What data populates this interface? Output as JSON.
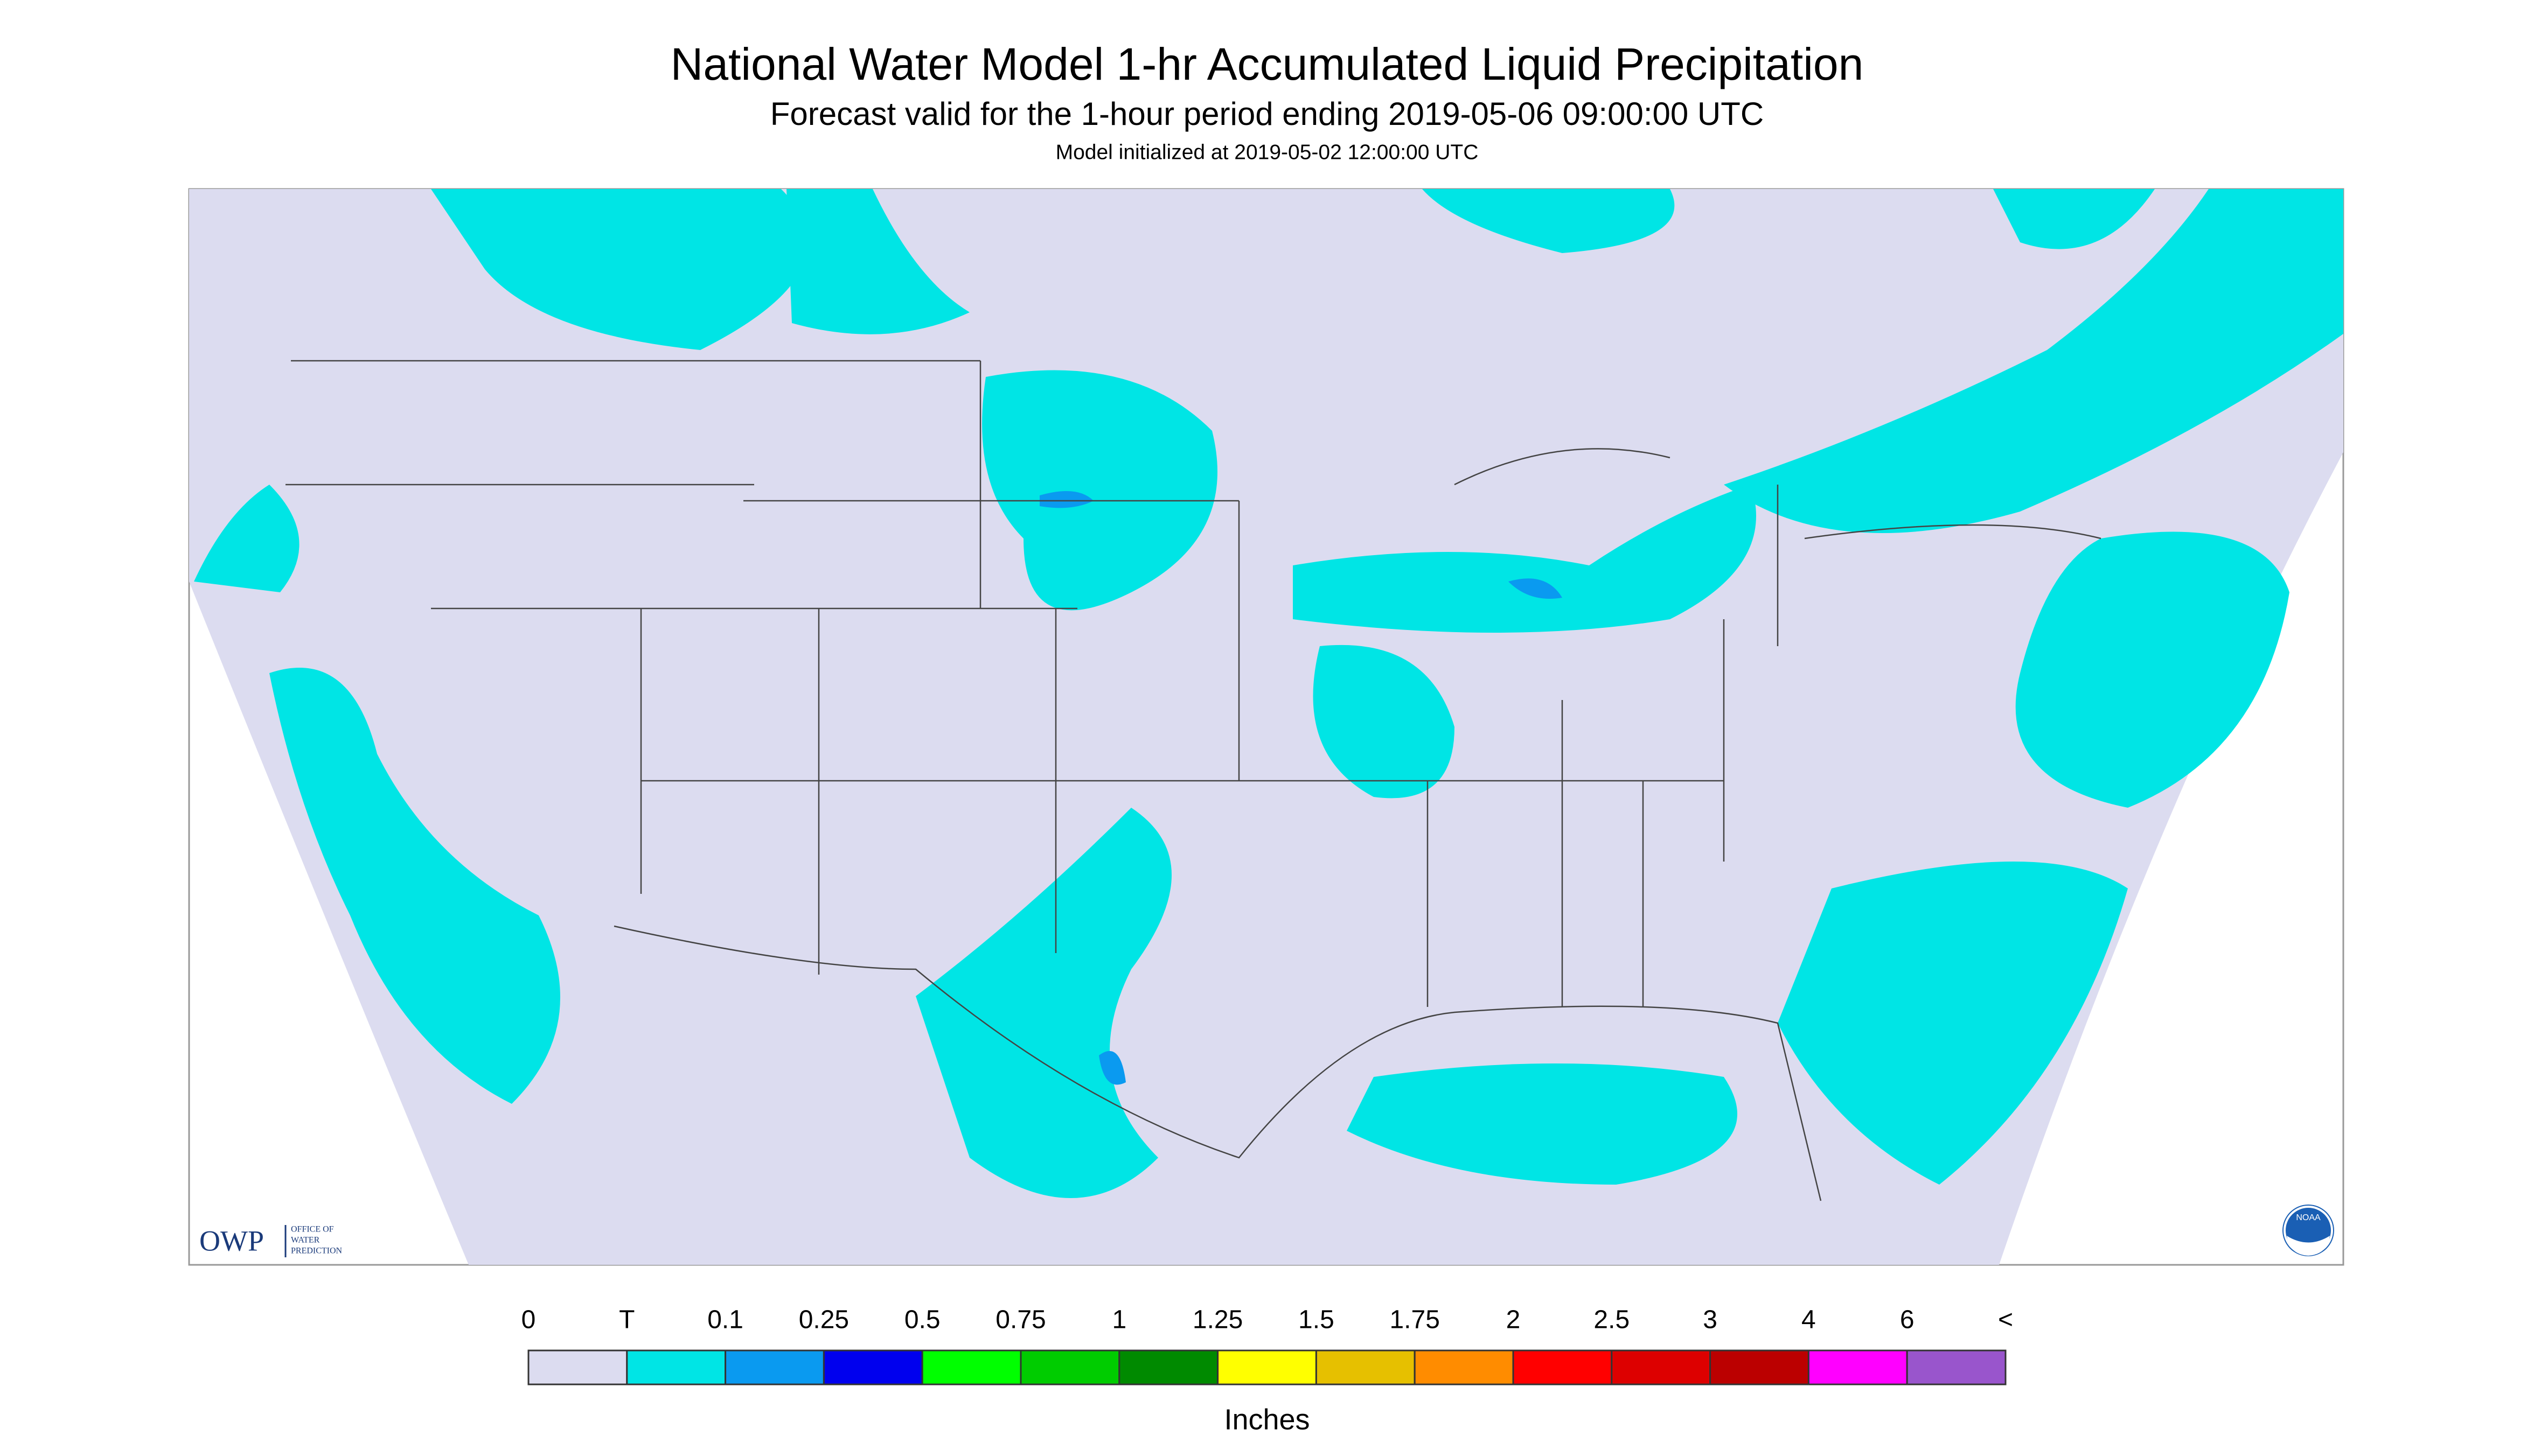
{
  "header": {
    "title": "National Water Model 1-hr Accumulated Liquid Precipitation",
    "subtitle": "Forecast valid for the 1-hour period ending 2019-05-06 09:00:00 UTC",
    "note": "Model initialized at 2019-05-02 12:00:00 UTC"
  },
  "logos": {
    "owp": "OWP",
    "owp_name": [
      "OFFICE OF",
      "WATER",
      "PREDICTION"
    ],
    "noaa": "NOAA"
  },
  "legend": {
    "labels": [
      "0",
      "T",
      "0.1",
      "0.25",
      "0.5",
      "0.75",
      "1",
      "1.25",
      "1.5",
      "1.75",
      "2",
      "2.5",
      "3",
      "4",
      "6",
      "<"
    ],
    "colors": [
      "#dcdcf0",
      "#00e5e5",
      "#0a9af0",
      "#0000ee",
      "#00ff00",
      "#00cc00",
      "#008a00",
      "#ffff00",
      "#e6c000",
      "#ff8c00",
      "#ff0000",
      "#dd0000",
      "#bb0000",
      "#ff00ff",
      "#9955cc"
    ],
    "unit": "Inches"
  }
}
